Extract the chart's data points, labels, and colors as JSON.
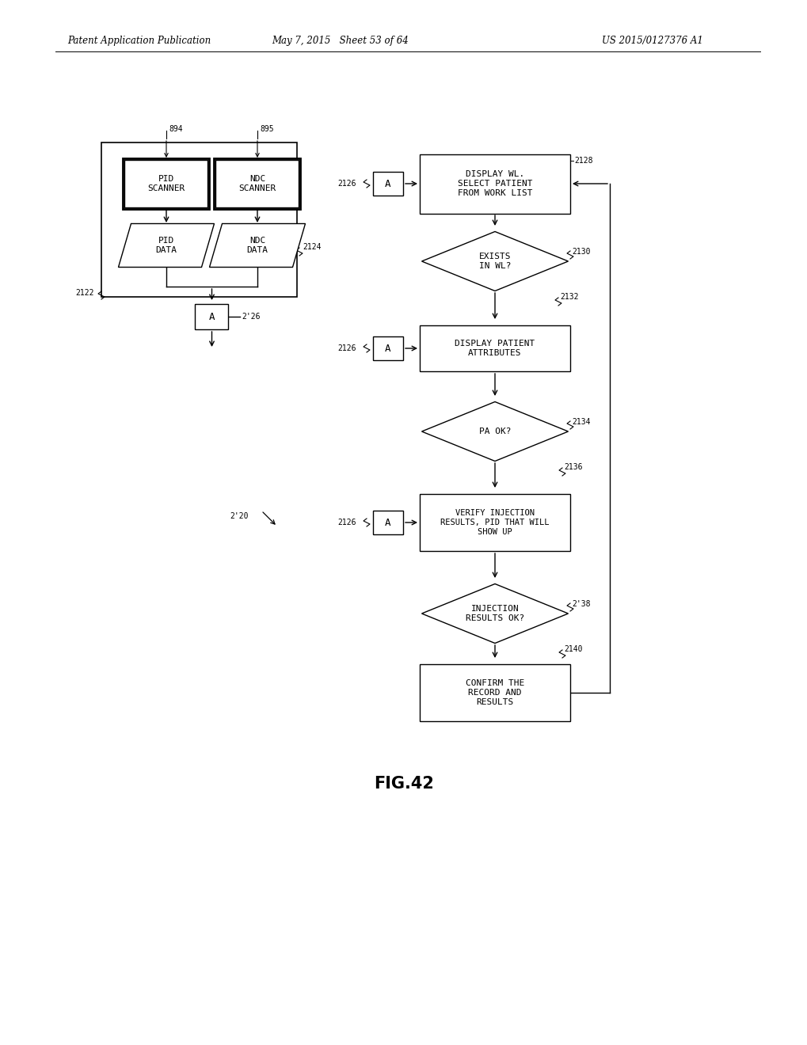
{
  "header_left": "Patent Application Publication",
  "header_mid": "May 7, 2015   Sheet 53 of 64",
  "header_right": "US 2015/0127376 A1",
  "fig_label": "FIG.42",
  "background": "#ffffff",
  "line_color": "#000000",
  "text_color": "#000000"
}
